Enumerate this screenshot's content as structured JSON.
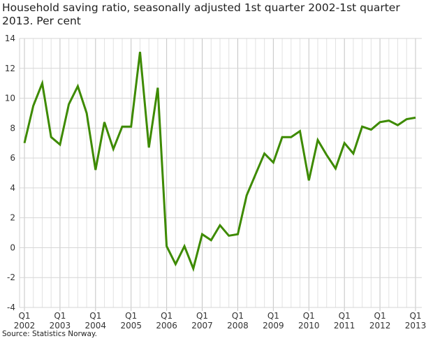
{
  "chart_data": {
    "type": "line",
    "title": "Household saving ratio, seasonally adjusted 1st quarter 2002-1st quarter 2013. Per cent",
    "source": "Source: Statistics Norway.",
    "xlabel": "",
    "ylabel": "",
    "ylim": [
      -4,
      14
    ],
    "yticks": [
      -4,
      -2,
      0,
      2,
      4,
      6,
      8,
      10,
      12,
      14
    ],
    "xtick_labels": [
      {
        "q": "Q1",
        "year": "2002"
      },
      {
        "q": "Q1",
        "year": "2003"
      },
      {
        "q": "Q1",
        "year": "2004"
      },
      {
        "q": "Q1",
        "year": "2005"
      },
      {
        "q": "Q1",
        "year": "2006"
      },
      {
        "q": "Q1",
        "year": "2007"
      },
      {
        "q": "Q1",
        "year": "2008"
      },
      {
        "q": "Q1",
        "year": "2009"
      },
      {
        "q": "Q1",
        "year": "2010"
      },
      {
        "q": "Q1",
        "year": "2011"
      },
      {
        "q": "Q1",
        "year": "2012"
      },
      {
        "q": "Q1",
        "year": "2013"
      }
    ],
    "grid": true,
    "line_color": "#3d8a00",
    "x": [
      "2002Q1",
      "2002Q2",
      "2002Q3",
      "2002Q4",
      "2003Q1",
      "2003Q2",
      "2003Q3",
      "2003Q4",
      "2004Q1",
      "2004Q2",
      "2004Q3",
      "2004Q4",
      "2005Q1",
      "2005Q2",
      "2005Q3",
      "2005Q4",
      "2006Q1",
      "2006Q2",
      "2006Q3",
      "2006Q4",
      "2007Q1",
      "2007Q2",
      "2007Q3",
      "2007Q4",
      "2008Q1",
      "2008Q2",
      "2008Q3",
      "2008Q4",
      "2009Q1",
      "2009Q2",
      "2009Q3",
      "2009Q4",
      "2010Q1",
      "2010Q2",
      "2010Q3",
      "2010Q4",
      "2011Q1",
      "2011Q2",
      "2011Q3",
      "2011Q4",
      "2012Q1",
      "2012Q2",
      "2012Q3",
      "2012Q4",
      "2013Q1"
    ],
    "values": [
      7.0,
      9.5,
      11.0,
      7.4,
      6.9,
      9.6,
      10.8,
      9.0,
      5.2,
      8.4,
      6.6,
      8.1,
      8.1,
      13.1,
      6.7,
      10.7,
      0.1,
      -1.1,
      0.1,
      -1.4,
      0.9,
      0.5,
      1.5,
      0.8,
      0.9,
      3.5,
      4.9,
      6.3,
      5.7,
      7.4,
      7.4,
      7.8,
      4.5,
      7.2,
      6.2,
      5.3,
      7.0,
      6.3,
      8.1,
      7.9,
      8.4,
      8.5,
      8.2,
      8.6,
      8.7
    ]
  }
}
